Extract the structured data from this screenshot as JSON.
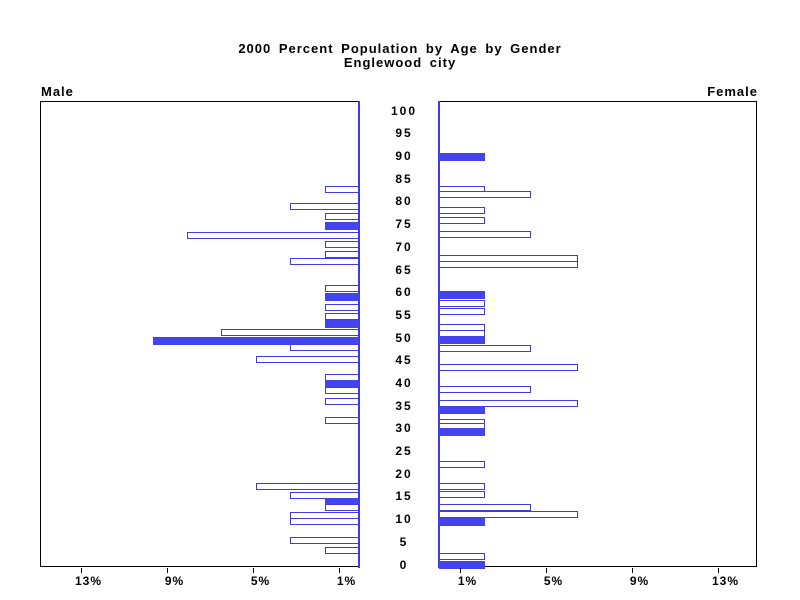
{
  "chart_data": {
    "type": "bar",
    "variant": "population-pyramid",
    "title": "2000 Percent Population by Age by Gender",
    "subtitle": "Englewood city",
    "left_label": "Male",
    "right_label": "Female",
    "axis": {
      "age_ticks": [
        0,
        5,
        10,
        15,
        20,
        25,
        30,
        35,
        40,
        45,
        50,
        55,
        60,
        65,
        70,
        75,
        80,
        85,
        90,
        95,
        100
      ],
      "pct_ticks": [
        1,
        5,
        9,
        13
      ],
      "pct_tick_suffix": "%",
      "pct_max": 14.8,
      "grid": false
    },
    "colors": {
      "bar_fill": "#4444ee",
      "bar_border": "#3c3ce0",
      "zero_axis": "#3c3ce0",
      "frame": "#000000"
    },
    "male": [
      {
        "age": 82.7,
        "pct": 1.6,
        "filled": false
      },
      {
        "age": 78.9,
        "pct": 3.2,
        "filled": false
      },
      {
        "age": 76.9,
        "pct": 1.6,
        "filled": false
      },
      {
        "age": 74.8,
        "pct": 1.6,
        "filled": true
      },
      {
        "age": 72.6,
        "pct": 8.0,
        "filled": false
      },
      {
        "age": 70.7,
        "pct": 1.6,
        "filled": false
      },
      {
        "age": 68.5,
        "pct": 1.6,
        "filled": false
      },
      {
        "age": 66.9,
        "pct": 3.2,
        "filled": false
      },
      {
        "age": 60.9,
        "pct": 1.6,
        "filled": false
      },
      {
        "age": 59.0,
        "pct": 1.6,
        "filled": true
      },
      {
        "age": 56.7,
        "pct": 1.6,
        "filled": false
      },
      {
        "age": 54.7,
        "pct": 1.6,
        "filled": false
      },
      {
        "age": 53.0,
        "pct": 1.6,
        "filled": true
      },
      {
        "age": 51.2,
        "pct": 6.4,
        "filled": false
      },
      {
        "age": 49.3,
        "pct": 9.6,
        "filled": true
      },
      {
        "age": 47.9,
        "pct": 3.2,
        "filled": false
      },
      {
        "age": 45.3,
        "pct": 4.8,
        "filled": false
      },
      {
        "age": 41.3,
        "pct": 1.6,
        "filled": false
      },
      {
        "age": 39.9,
        "pct": 1.6,
        "filled": true
      },
      {
        "age": 38.4,
        "pct": 1.6,
        "filled": false
      },
      {
        "age": 36.0,
        "pct": 1.6,
        "filled": false
      },
      {
        "age": 31.9,
        "pct": 1.6,
        "filled": false
      },
      {
        "age": 17.3,
        "pct": 4.8,
        "filled": false
      },
      {
        "age": 15.4,
        "pct": 3.2,
        "filled": false
      },
      {
        "age": 14.0,
        "pct": 1.6,
        "filled": true
      },
      {
        "age": 12.7,
        "pct": 1.6,
        "filled": false
      },
      {
        "age": 11.0,
        "pct": 3.2,
        "filled": false
      },
      {
        "age": 9.7,
        "pct": 3.2,
        "filled": false
      },
      {
        "age": 5.5,
        "pct": 3.2,
        "filled": false
      },
      {
        "age": 3.3,
        "pct": 1.6,
        "filled": false
      }
    ],
    "female": [
      {
        "age": 90.0,
        "pct": 2.15,
        "filled": true
      },
      {
        "age": 82.8,
        "pct": 2.15,
        "filled": false
      },
      {
        "age": 81.6,
        "pct": 4.3,
        "filled": false
      },
      {
        "age": 78.2,
        "pct": 2.15,
        "filled": false
      },
      {
        "age": 76.0,
        "pct": 2.15,
        "filled": false
      },
      {
        "age": 72.9,
        "pct": 4.3,
        "filled": false
      },
      {
        "age": 67.6,
        "pct": 6.45,
        "filled": false
      },
      {
        "age": 66.3,
        "pct": 6.45,
        "filled": false
      },
      {
        "age": 59.6,
        "pct": 2.15,
        "filled": true
      },
      {
        "age": 57.6,
        "pct": 2.15,
        "filled": false
      },
      {
        "age": 55.8,
        "pct": 2.15,
        "filled": false
      },
      {
        "age": 52.3,
        "pct": 2.15,
        "filled": false
      },
      {
        "age": 51.1,
        "pct": 2.15,
        "filled": false
      },
      {
        "age": 49.5,
        "pct": 2.15,
        "filled": true
      },
      {
        "age": 47.6,
        "pct": 4.3,
        "filled": false
      },
      {
        "age": 43.5,
        "pct": 6.45,
        "filled": false
      },
      {
        "age": 38.6,
        "pct": 4.3,
        "filled": false
      },
      {
        "age": 35.7,
        "pct": 6.45,
        "filled": false
      },
      {
        "age": 34.1,
        "pct": 2.15,
        "filled": true
      },
      {
        "age": 31.5,
        "pct": 2.15,
        "filled": false
      },
      {
        "age": 30.5,
        "pct": 2.15,
        "filled": false
      },
      {
        "age": 29.4,
        "pct": 2.15,
        "filled": true
      },
      {
        "age": 22.1,
        "pct": 2.15,
        "filled": false
      },
      {
        "age": 17.3,
        "pct": 2.15,
        "filled": false
      },
      {
        "age": 15.5,
        "pct": 2.15,
        "filled": false
      },
      {
        "age": 12.6,
        "pct": 4.3,
        "filled": false
      },
      {
        "age": 11.2,
        "pct": 6.45,
        "filled": false
      },
      {
        "age": 9.4,
        "pct": 2.15,
        "filled": true
      },
      {
        "age": 1.9,
        "pct": 2.15,
        "filled": false
      },
      {
        "age": 0.1,
        "pct": 2.15,
        "filled": true
      }
    ]
  }
}
